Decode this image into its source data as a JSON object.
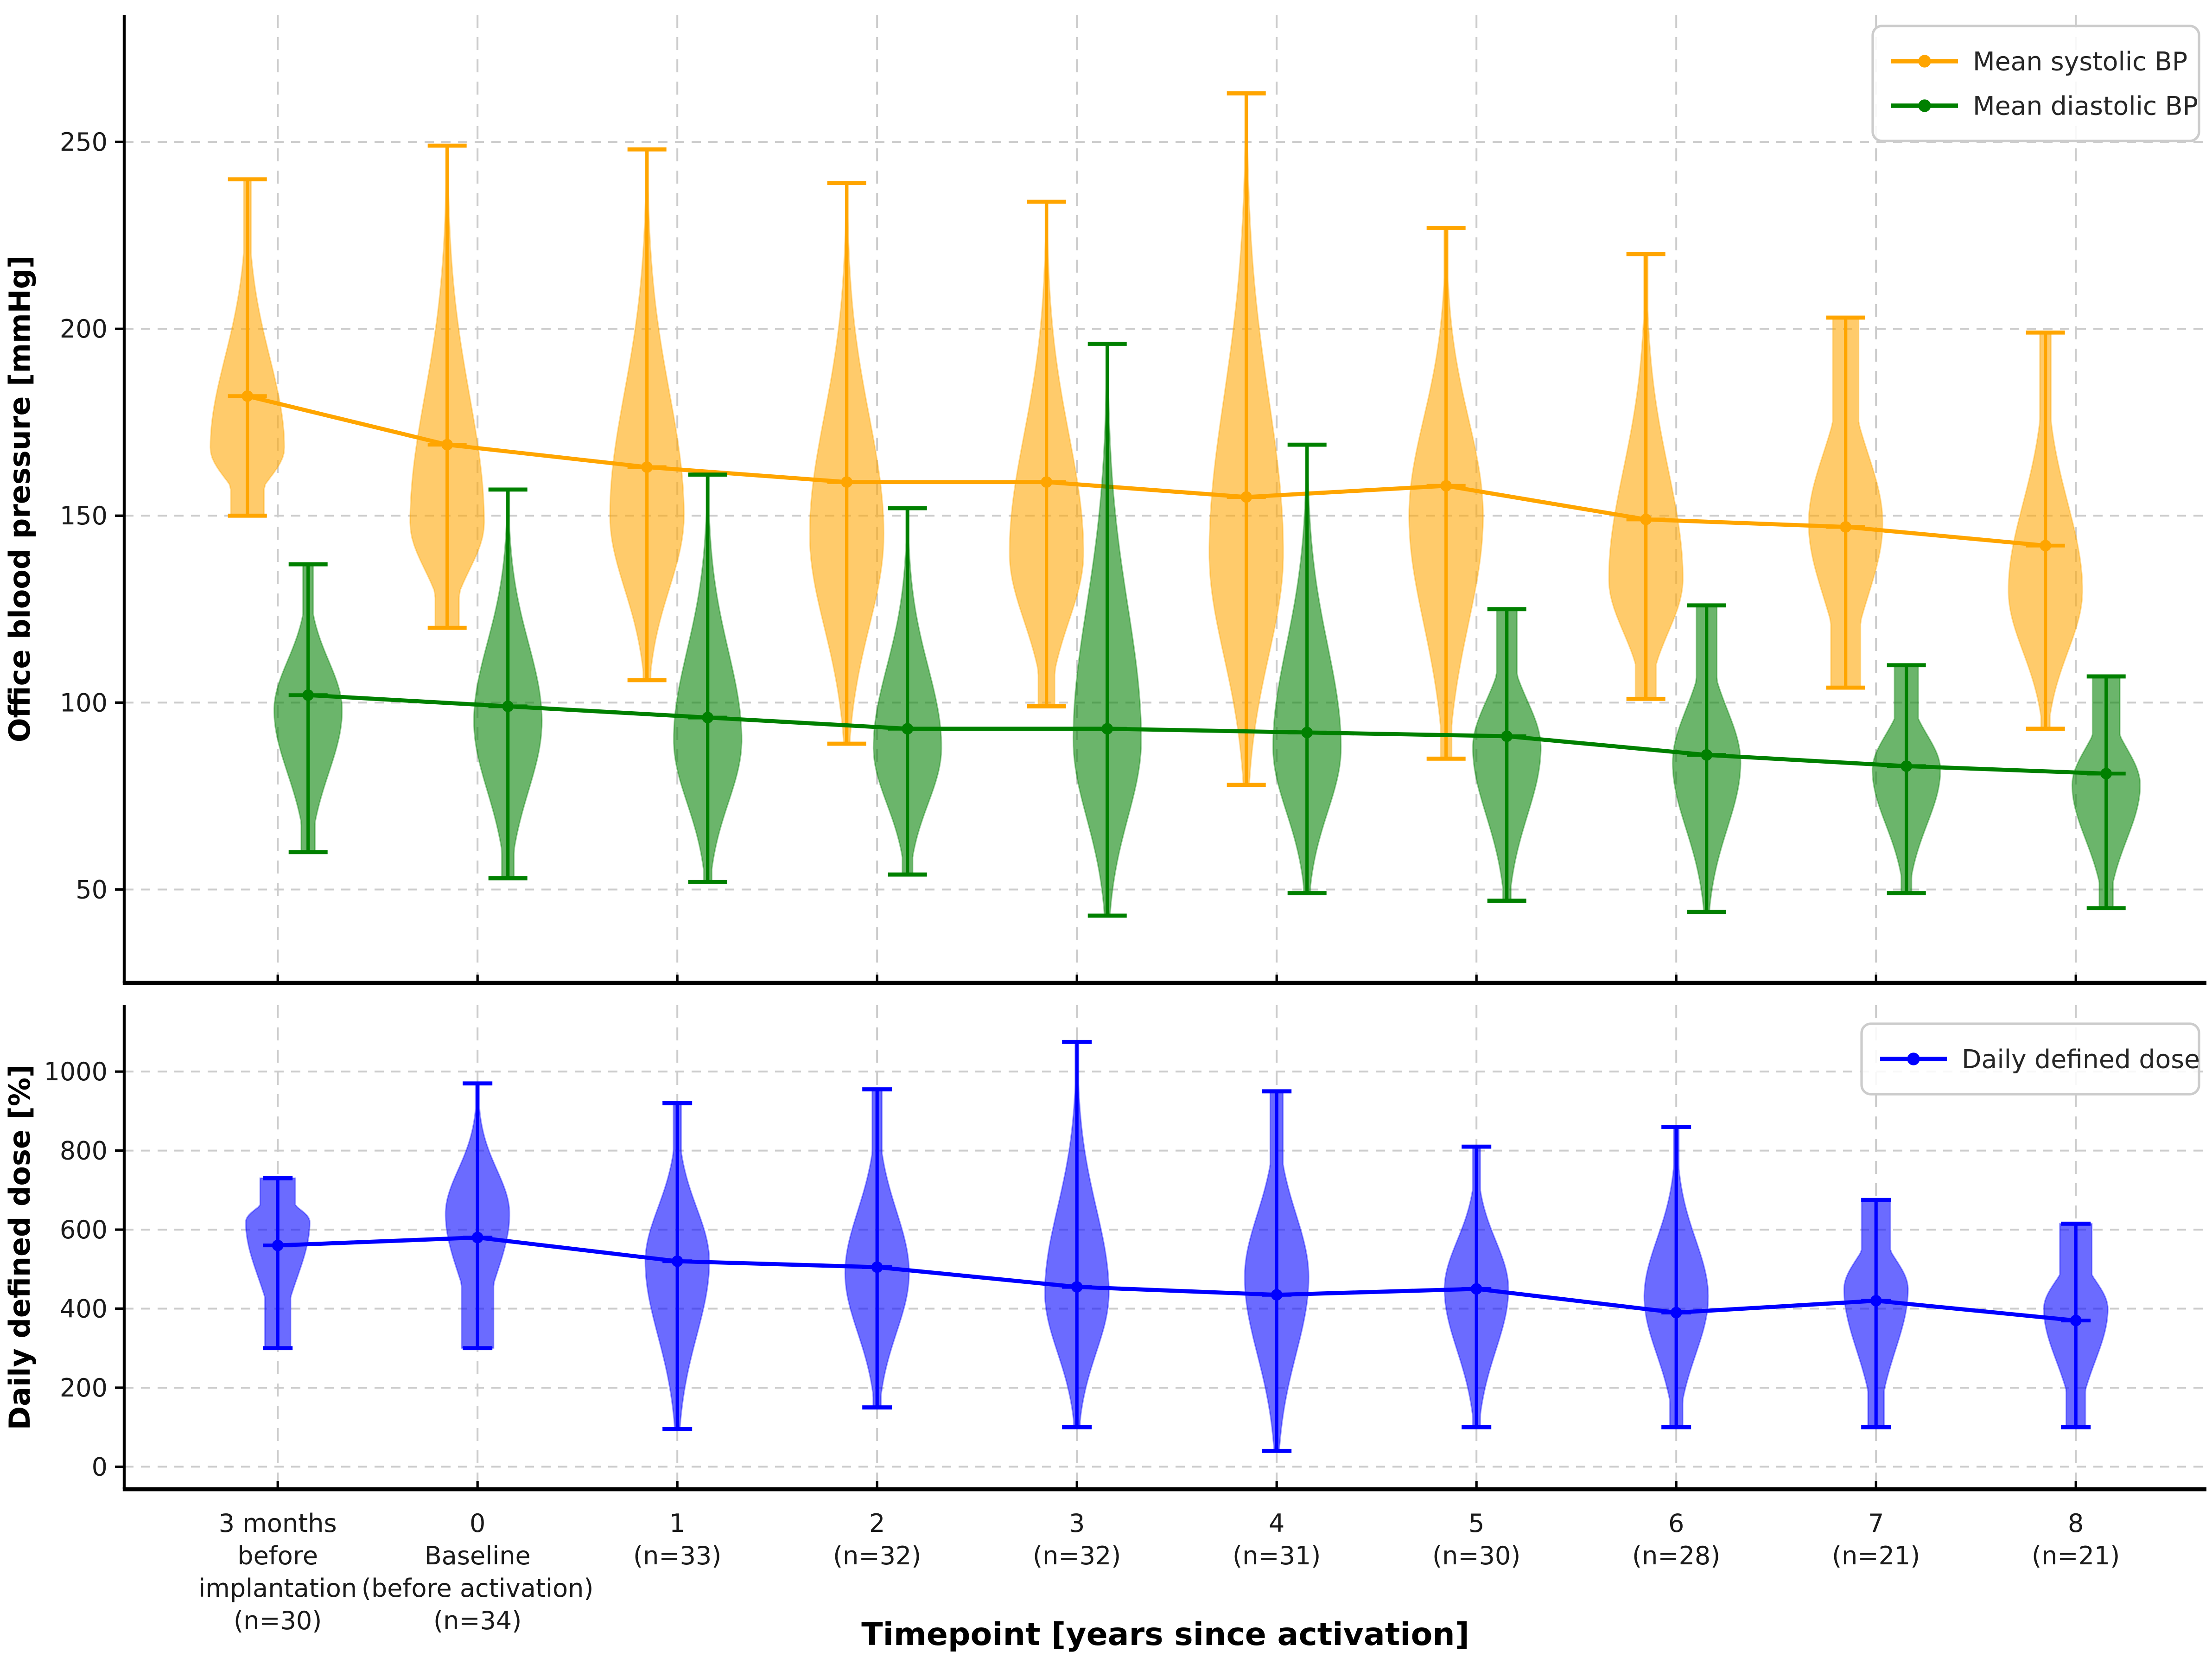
{
  "figure": {
    "background": "#ffffff",
    "colors": {
      "grid": "#cccccc",
      "axis": "#000000",
      "text": "#1a1a1a",
      "legend_border": "#cccccc"
    },
    "x_axis": {
      "title": "Timepoint [years since activation]",
      "tick_labels": [
        [
          "3 months",
          "before",
          "implantation",
          "(n=30)"
        ],
        [
          "0",
          "Baseline",
          "(before activation)",
          "(n=34)"
        ],
        [
          "1",
          "(n=33)"
        ],
        [
          "2",
          "(n=32)"
        ],
        [
          "3",
          "(n=32)"
        ],
        [
          "4",
          "(n=31)"
        ],
        [
          "5",
          "(n=30)"
        ],
        [
          "6",
          "(n=28)"
        ],
        [
          "7",
          "(n=21)"
        ],
        [
          "8",
          "(n=21)"
        ]
      ]
    }
  },
  "chart_data": [
    {
      "type": "violin",
      "panel": "top",
      "ylabel": "Office blood pressure [mmHg]",
      "ylim": [
        25,
        284
      ],
      "yticks": [
        50,
        100,
        150,
        200,
        250
      ],
      "grid": true,
      "legend_position": "upper right",
      "series": [
        {
          "name": "Mean systolic BP",
          "color": "#FFA500",
          "offset": -0.152,
          "half_width": 0.185,
          "means": [
            182,
            169,
            163,
            159,
            159,
            155,
            158,
            149,
            147,
            142
          ],
          "violins": [
            {
              "lo": 150,
              "hi": 240,
              "peak": 168,
              "blo": 0.45,
              "bhi": 0.1
            },
            {
              "lo": 120,
              "hi": 249,
              "peak": 148,
              "blo": 0.32,
              "bhi": 0.03
            },
            {
              "lo": 106,
              "hi": 248,
              "peak": 150,
              "blo": 0.1,
              "bhi": 0.03
            },
            {
              "lo": 89,
              "hi": 239,
              "peak": 145,
              "blo": 0.08,
              "bhi": 0.03
            },
            {
              "lo": 99,
              "hi": 234,
              "peak": 140,
              "blo": 0.22,
              "bhi": 0.03
            },
            {
              "lo": 78,
              "hi": 263,
              "peak": 140,
              "blo": 0.05,
              "bhi": 0.03
            },
            {
              "lo": 85,
              "hi": 227,
              "peak": 150,
              "blo": 0.15,
              "bhi": 0.05
            },
            {
              "lo": 101,
              "hi": 220,
              "peak": 133,
              "blo": 0.28,
              "bhi": 0.05
            },
            {
              "lo": 104,
              "hi": 203,
              "peak": 148,
              "blo": 0.4,
              "bhi": 0.35
            },
            {
              "lo": 93,
              "hi": 199,
              "peak": 130,
              "blo": 0.12,
              "bhi": 0.15
            }
          ]
        },
        {
          "name": "Mean diastolic BP",
          "color": "#008000",
          "offset": 0.152,
          "half_width": 0.17,
          "means": [
            102,
            99,
            96,
            93,
            93,
            92,
            91,
            86,
            83,
            81
          ],
          "violins": [
            {
              "lo": 60,
              "hi": 137,
              "peak": 98,
              "blo": 0.2,
              "bhi": 0.15
            },
            {
              "lo": 53,
              "hi": 157,
              "peak": 95,
              "blo": 0.18,
              "bhi": 0.04
            },
            {
              "lo": 52,
              "hi": 161,
              "peak": 90,
              "blo": 0.12,
              "bhi": 0.04
            },
            {
              "lo": 54,
              "hi": 152,
              "peak": 88,
              "blo": 0.15,
              "bhi": 0.04
            },
            {
              "lo": 43,
              "hi": 196,
              "peak": 90,
              "blo": 0.08,
              "bhi": 0.03
            },
            {
              "lo": 49,
              "hi": 169,
              "peak": 88,
              "blo": 0.1,
              "bhi": 0.03
            },
            {
              "lo": 47,
              "hi": 125,
              "peak": 88,
              "blo": 0.12,
              "bhi": 0.3
            },
            {
              "lo": 44,
              "hi": 126,
              "peak": 84,
              "blo": 0.08,
              "bhi": 0.3
            },
            {
              "lo": 49,
              "hi": 110,
              "peak": 82,
              "blo": 0.15,
              "bhi": 0.35
            },
            {
              "lo": 45,
              "hi": 107,
              "peak": 78,
              "blo": 0.2,
              "bhi": 0.4
            }
          ]
        }
      ]
    },
    {
      "type": "violin",
      "panel": "bottom",
      "ylabel": "Daily defined dose [%]",
      "ylim": [
        -57,
        1168
      ],
      "yticks": [
        0,
        200,
        400,
        600,
        800,
        1000
      ],
      "grid": true,
      "legend_position": "upper right",
      "series": [
        {
          "name": "Daily defined dose",
          "color": "#0000FF",
          "offset": 0,
          "half_width": 0.16,
          "means": [
            560,
            580,
            520,
            505,
            455,
            435,
            450,
            390,
            420,
            370
          ],
          "violins": [
            {
              "lo": 300,
              "hi": 730,
              "peak": 620,
              "blo": 0.4,
              "bhi": 0.55
            },
            {
              "lo": 300,
              "hi": 970,
              "peak": 640,
              "blo": 0.5,
              "bhi": 0.06
            },
            {
              "lo": 95,
              "hi": 920,
              "peak": 520,
              "blo": 0.08,
              "bhi": 0.12
            },
            {
              "lo": 150,
              "hi": 955,
              "peak": 490,
              "blo": 0.12,
              "bhi": 0.15
            },
            {
              "lo": 100,
              "hi": 1075,
              "peak": 440,
              "blo": 0.1,
              "bhi": 0.05
            },
            {
              "lo": 40,
              "hi": 950,
              "peak": 480,
              "blo": 0.05,
              "bhi": 0.2
            },
            {
              "lo": 100,
              "hi": 810,
              "peak": 450,
              "blo": 0.12,
              "bhi": 0.12
            },
            {
              "lo": 100,
              "hi": 860,
              "peak": 430,
              "blo": 0.2,
              "bhi": 0.08
            },
            {
              "lo": 100,
              "hi": 675,
              "peak": 450,
              "blo": 0.25,
              "bhi": 0.45
            },
            {
              "lo": 100,
              "hi": 615,
              "peak": 400,
              "blo": 0.3,
              "bhi": 0.5
            }
          ]
        }
      ]
    }
  ]
}
